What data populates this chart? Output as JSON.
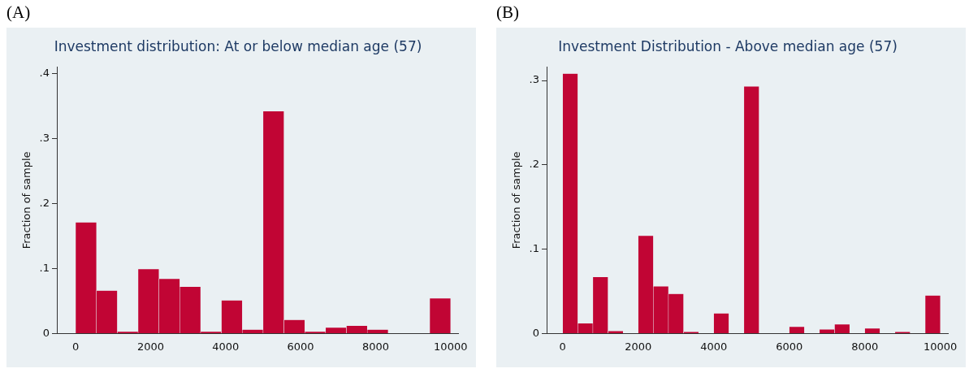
{
  "chart_data": [
    {
      "type": "histogram",
      "title": "Investment distribution: At or below median age (57)",
      "ylabel": "Fraction of sample",
      "annotations": [
        "(A)"
      ],
      "color": "#c10534",
      "bins": [
        0,
        556,
        1111,
        1667,
        2222,
        2778,
        3333,
        3889,
        4444,
        5000,
        5556,
        6111,
        6667,
        7222,
        7778,
        8333,
        8889,
        9444,
        10000
      ],
      "values": [
        0.171,
        0.066,
        0.003,
        0.099,
        0.084,
        0.072,
        0.003,
        0.051,
        0.006,
        0.342,
        0.021,
        0.003,
        0.009,
        0.012,
        0.006,
        0,
        0,
        0.054
      ],
      "xlim": [
        -500,
        10200
      ],
      "xticks": [
        0,
        2000,
        4000,
        6000,
        8000,
        10000
      ],
      "ylim": [
        0,
        0.41
      ],
      "yticks": [
        0,
        {
          "value": 0.1,
          "label": ".1"
        },
        {
          "value": 0.2,
          "label": ".2"
        },
        {
          "value": 0.3,
          "label": ".3"
        },
        {
          "value": 0.4,
          "label": ".4"
        }
      ],
      "grid": false,
      "legend": false
    },
    {
      "type": "histogram",
      "title": "Investment Distribution - Above median age (57)",
      "ylabel": "Fraction of sample",
      "annotations": [
        "(B)"
      ],
      "color": "#c10534",
      "bins": [
        0,
        400,
        800,
        1200,
        1600,
        2000,
        2400,
        2800,
        3200,
        3600,
        4000,
        4400,
        4800,
        5200,
        5600,
        6000,
        6400,
        6800,
        7200,
        7600,
        8000,
        8400,
        8800,
        9200,
        9600,
        10000
      ],
      "values": [
        0.308,
        0.012,
        0.067,
        0.003,
        0,
        0.116,
        0.056,
        0.047,
        0.002,
        0,
        0.024,
        0,
        0.293,
        0,
        0,
        0.008,
        0,
        0.005,
        0.011,
        0,
        0.006,
        0,
        0.002,
        0,
        0.045
      ],
      "xlim": [
        -425,
        10200
      ],
      "xticks": [
        0,
        2000,
        4000,
        6000,
        8000,
        10000
      ],
      "ylim": [
        0,
        0.316
      ],
      "yticks": [
        0,
        {
          "value": 0.1,
          "label": ".1"
        },
        {
          "value": 0.2,
          "label": ".2"
        },
        {
          "value": 0.3,
          "label": ".3"
        }
      ],
      "grid": false,
      "legend": false
    }
  ]
}
